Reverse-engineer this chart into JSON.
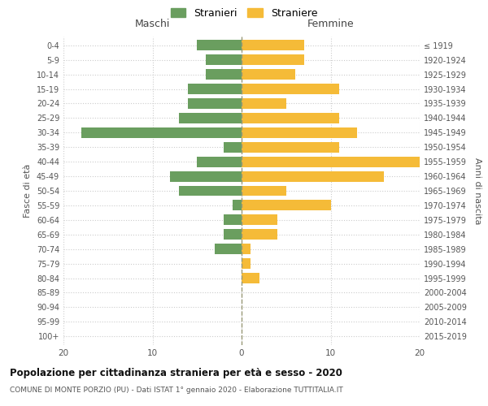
{
  "age_groups": [
    "0-4",
    "5-9",
    "10-14",
    "15-19",
    "20-24",
    "25-29",
    "30-34",
    "35-39",
    "40-44",
    "45-49",
    "50-54",
    "55-59",
    "60-64",
    "65-69",
    "70-74",
    "75-79",
    "80-84",
    "85-89",
    "90-94",
    "95-99",
    "100+"
  ],
  "birth_years": [
    "2015-2019",
    "2010-2014",
    "2005-2009",
    "2000-2004",
    "1995-1999",
    "1990-1994",
    "1985-1989",
    "1980-1984",
    "1975-1979",
    "1970-1974",
    "1965-1969",
    "1960-1964",
    "1955-1959",
    "1950-1954",
    "1945-1949",
    "1940-1944",
    "1935-1939",
    "1930-1934",
    "1925-1929",
    "1920-1924",
    "≤ 1919"
  ],
  "maschi": [
    5,
    4,
    4,
    6,
    6,
    7,
    18,
    2,
    5,
    8,
    7,
    1,
    2,
    2,
    3,
    0,
    0,
    0,
    0,
    0,
    0
  ],
  "femmine": [
    7,
    7,
    6,
    11,
    5,
    11,
    13,
    11,
    20,
    16,
    5,
    10,
    4,
    4,
    1,
    1,
    2,
    0,
    0,
    0,
    0
  ],
  "color_maschi": "#6a9e5f",
  "color_femmine": "#f5bb38",
  "title": "Popolazione per cittadinanza straniera per età e sesso - 2020",
  "subtitle": "COMUNE DI MONTE PORZIO (PU) - Dati ISTAT 1° gennaio 2020 - Elaborazione TUTTITALIA.IT",
  "legend_maschi": "Stranieri",
  "legend_femmine": "Straniere",
  "xlabel_left": "Maschi",
  "xlabel_right": "Femmine",
  "ylabel_left": "Fasce di età",
  "ylabel_right": "Anni di nascita",
  "xlim": 20,
  "background_color": "#ffffff",
  "grid_color": "#cccccc"
}
